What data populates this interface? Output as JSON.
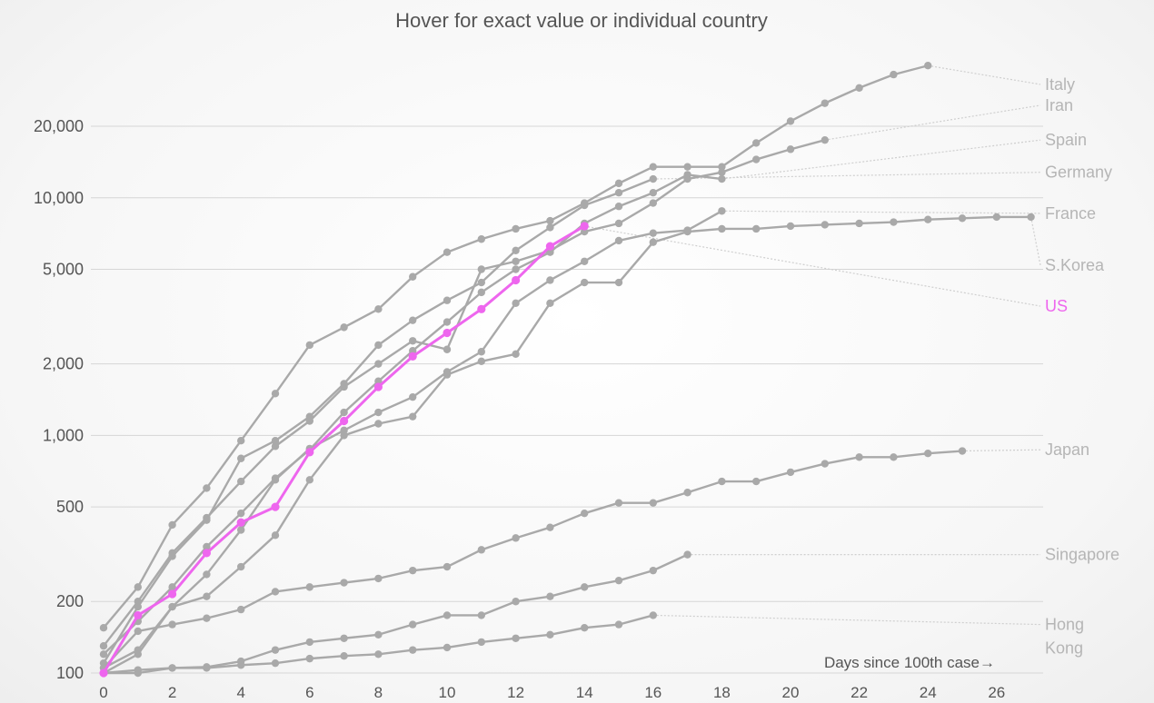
{
  "chart_data": {
    "type": "line",
    "title": "Hover for exact value or individual country",
    "xlabel": "Days since 100th case",
    "xlabel_arrow": "→",
    "ylabel": "",
    "yscale": "log",
    "xlim": [
      0,
      27
    ],
    "ylim": [
      100,
      38000
    ],
    "xticks": [
      "0",
      "2",
      "4",
      "6",
      "8",
      "10",
      "12",
      "14",
      "16",
      "18",
      "20",
      "22",
      "24",
      "26"
    ],
    "yticks": [
      {
        "value": 100,
        "label": "100"
      },
      {
        "value": 200,
        "label": "200"
      },
      {
        "value": 500,
        "label": "500"
      },
      {
        "value": 1000,
        "label": "1,000"
      },
      {
        "value": 2000,
        "label": "2,000"
      },
      {
        "value": 5000,
        "label": "5,000"
      },
      {
        "value": 10000,
        "label": "10,000"
      },
      {
        "value": 20000,
        "label": "20,000"
      }
    ],
    "grid": "horizontal",
    "colors": {
      "highlight": "#ee66ee",
      "other": "#a9a9a9",
      "label": "#b5b5b5"
    },
    "series": [
      {
        "name": "Italy",
        "label_lines": [
          "Italy"
        ],
        "label_value": 30000,
        "highlight": false,
        "values": [
          155,
          230,
          420,
          600,
          950,
          1500,
          2400,
          2850,
          3400,
          4650,
          5900,
          6700,
          7400,
          8000,
          9500,
          11500,
          13500,
          13500,
          13500,
          17000,
          21000,
          25000,
          29000,
          33000,
          36000
        ]
      },
      {
        "name": "Iran",
        "label_lines": [
          "Iran"
        ],
        "label_value": 24500,
        "highlight": false,
        "values": [
          130,
          200,
          320,
          450,
          640,
          900,
          1150,
          1600,
          2000,
          2500,
          2300,
          5000,
          5400,
          6000,
          7200,
          7800,
          9500,
          12000,
          12800,
          14500,
          16000,
          17500
        ]
      },
      {
        "name": "Spain",
        "label_lines": [
          "Spain"
        ],
        "label_value": 17500,
        "highlight": false,
        "values": [
          120,
          165,
          230,
          340,
          470,
          660,
          870,
          1250,
          1690,
          2270,
          3000,
          4000,
          5000,
          5900,
          7800,
          9200,
          10500,
          12500,
          12000
        ]
      },
      {
        "name": "Germany",
        "label_lines": [
          "Germany"
        ],
        "label_value": 12800,
        "highlight": false,
        "values": [
          110,
          190,
          310,
          440,
          800,
          950,
          1200,
          1650,
          2400,
          3050,
          3700,
          4400,
          6000,
          7500,
          9300,
          10500,
          12000
        ]
      },
      {
        "name": "France",
        "label_lines": [
          "France"
        ],
        "label_value": 8600,
        "highlight": false,
        "values": [
          100,
          120,
          190,
          260,
          400,
          650,
          880,
          1050,
          1250,
          1450,
          1850,
          2250,
          3600,
          4500,
          5400,
          6600,
          7100,
          7300,
          8800
        ]
      },
      {
        "name": "S.Korea",
        "label_lines": [
          "S.Korea"
        ],
        "label_value": 5200,
        "highlight": false,
        "values": [
          105,
          125,
          190,
          210,
          280,
          380,
          650,
          1000,
          1120,
          1200,
          1800,
          2050,
          2200,
          3600,
          4400,
          4400,
          6500,
          7200,
          7400,
          7400,
          7600,
          7700,
          7800,
          7900,
          8100,
          8200,
          8300,
          8300
        ]
      },
      {
        "name": "US",
        "label_lines": [
          "US"
        ],
        "label_value": 3500,
        "highlight": true,
        "values": [
          100,
          175,
          215,
          320,
          430,
          500,
          850,
          1150,
          1600,
          2150,
          2700,
          3400,
          4500,
          6250,
          7600
        ]
      },
      {
        "name": "Japan",
        "label_lines": [
          "Japan"
        ],
        "label_value": 870,
        "highlight": false,
        "values": [
          105,
          150,
          160,
          170,
          185,
          220,
          230,
          240,
          250,
          270,
          280,
          330,
          370,
          410,
          470,
          520,
          520,
          575,
          640,
          640,
          700,
          760,
          810,
          810,
          840,
          860
        ]
      },
      {
        "name": "Singapore",
        "label_lines": [
          "Singapore"
        ],
        "label_value": 315,
        "highlight": false,
        "values": [
          100,
          103,
          105,
          106,
          112,
          125,
          135,
          140,
          145,
          160,
          175,
          175,
          200,
          210,
          230,
          245,
          270,
          315
        ]
      },
      {
        "name": "Hong Kong",
        "label_lines": [
          "Hong",
          "Kong"
        ],
        "label_value": 160,
        "highlight": false,
        "values": [
          100,
          100,
          105,
          105,
          108,
          110,
          115,
          118,
          120,
          125,
          128,
          135,
          140,
          145,
          155,
          160,
          175
        ]
      }
    ]
  }
}
